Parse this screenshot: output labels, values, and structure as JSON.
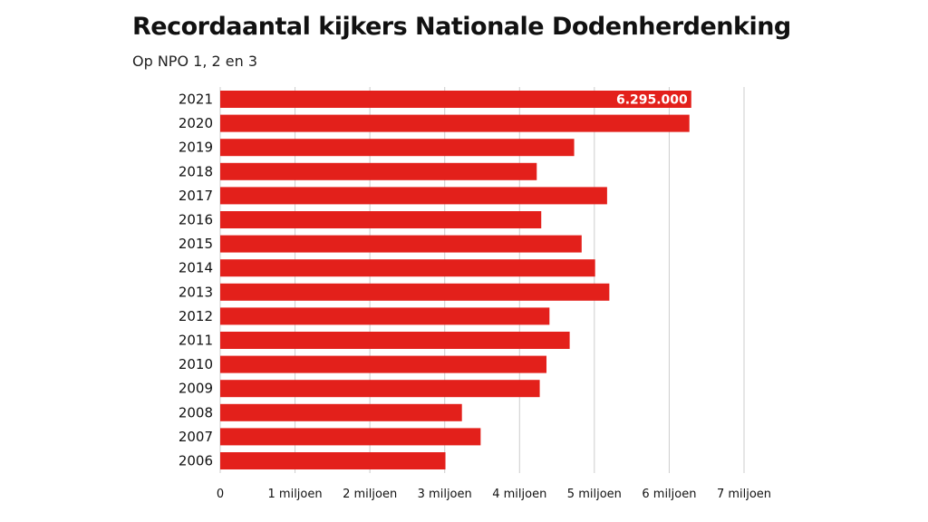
{
  "chart_data": {
    "type": "bar",
    "orientation": "horizontal",
    "title": "Recordaantal kijkers Nationale Dodenherdenking",
    "subtitle": "Op NPO 1, 2 en 3",
    "categories": [
      "2021",
      "2020",
      "2019",
      "2018",
      "2017",
      "2016",
      "2015",
      "2014",
      "2013",
      "2012",
      "2011",
      "2010",
      "2009",
      "2008",
      "2007",
      "2006"
    ],
    "values": [
      6295000,
      6270000,
      4730000,
      4230000,
      5170000,
      4290000,
      4830000,
      5010000,
      5200000,
      4400000,
      4670000,
      4360000,
      4270000,
      3230000,
      3480000,
      3010000
    ],
    "data_labels": [
      {
        "category": "2021",
        "text": "6.295.000"
      }
    ],
    "xlim": [
      0,
      7000000
    ],
    "xticks": [
      0,
      1000000,
      2000000,
      3000000,
      4000000,
      5000000,
      6000000,
      7000000
    ],
    "xtick_labels": [
      "0",
      "1 miljoen",
      "2 miljoen",
      "3 miljoen",
      "4 miljoen",
      "5 miljoen",
      "6 miljoen",
      "7 miljoen"
    ],
    "xlabel": "",
    "ylabel": "",
    "grid": "vertical",
    "bar_color": "#e3201b",
    "grid_color": "#cccccc"
  }
}
